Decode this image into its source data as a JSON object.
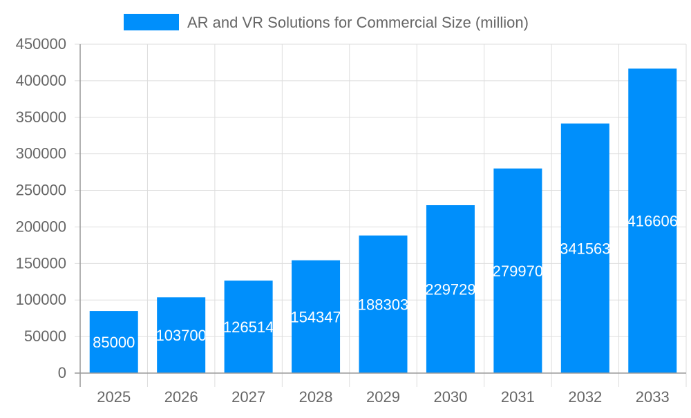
{
  "chart_data": {
    "type": "bar",
    "title": "",
    "xlabel": "",
    "ylabel": "",
    "categories": [
      "2025",
      "2026",
      "2027",
      "2028",
      "2029",
      "2030",
      "2031",
      "2032",
      "2033"
    ],
    "series": [
      {
        "name": "AR and VR Solutions for Commercial Size (million)",
        "values": [
          85000,
          103700,
          126514,
          154347,
          188303,
          229729,
          279970,
          341563,
          416606
        ],
        "color": "#008ffb"
      }
    ],
    "ylim": [
      0,
      450000
    ],
    "yticks": [
      0,
      50000,
      100000,
      150000,
      200000,
      250000,
      300000,
      350000,
      400000,
      450000
    ],
    "grid": true,
    "legend": "top",
    "data_labels": true
  }
}
